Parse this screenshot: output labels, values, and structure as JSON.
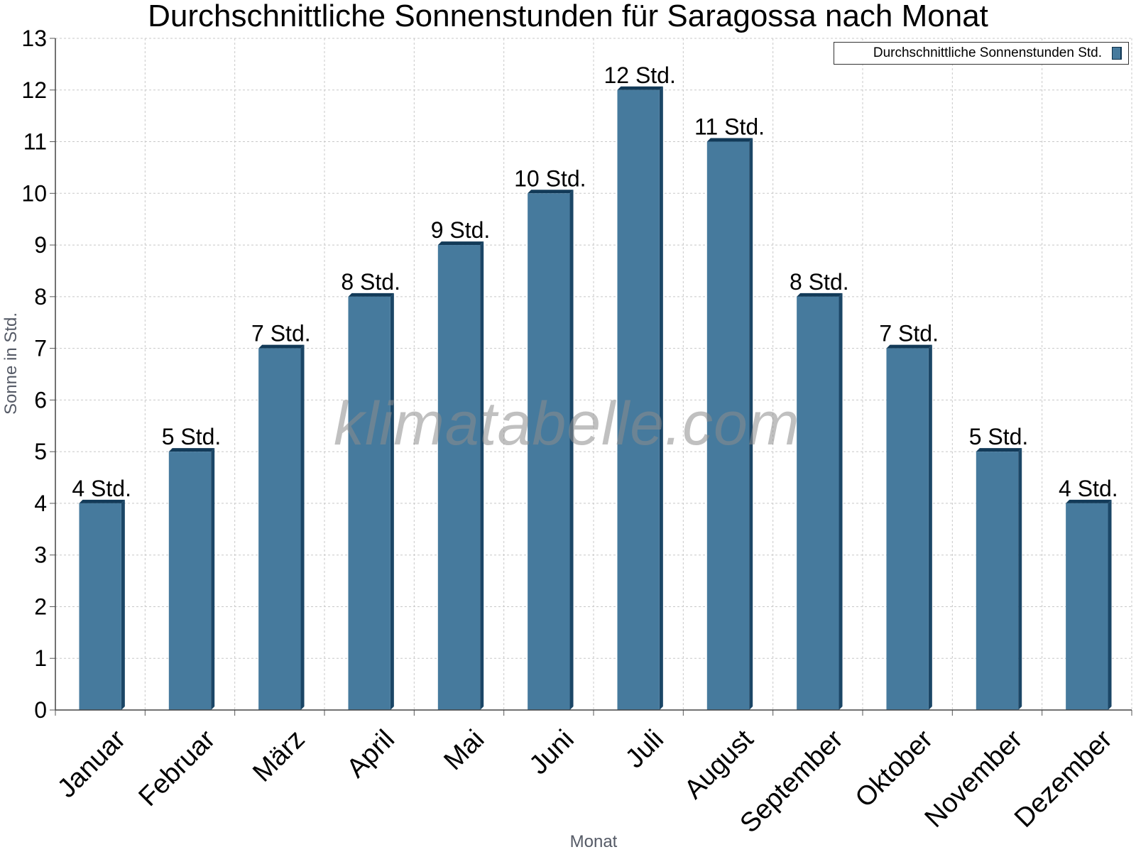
{
  "chart_data": {
    "type": "bar",
    "title": "Durchschnittliche Sonnenstunden für Saragossa nach Monat",
    "xlabel": "Monat",
    "ylabel": "Sonne in Std.",
    "ylim": [
      0,
      13
    ],
    "yticks": [
      0,
      1,
      2,
      3,
      4,
      5,
      6,
      7,
      8,
      9,
      10,
      11,
      12,
      13
    ],
    "grid": true,
    "legend_position": "top-right",
    "categories": [
      "Januar",
      "Februar",
      "März",
      "April",
      "Mai",
      "Juni",
      "Juli",
      "August",
      "September",
      "Oktober",
      "November",
      "Dezember"
    ],
    "series": [
      {
        "name": "Durchschnittliche Sonnenstunden Std.",
        "color": "#467a9d",
        "values": [
          4,
          5,
          7,
          8,
          9,
          10,
          12,
          11,
          8,
          7,
          5,
          4
        ],
        "data_labels": [
          "4 Std.",
          "5 Std.",
          "7 Std.",
          "8 Std.",
          "9 Std.",
          "10 Std.",
          "12 Std.",
          "11 Std.",
          "8 Std.",
          "7 Std.",
          "5 Std.",
          "4 Std."
        ]
      }
    ]
  },
  "watermark": "klimatabelle.com"
}
